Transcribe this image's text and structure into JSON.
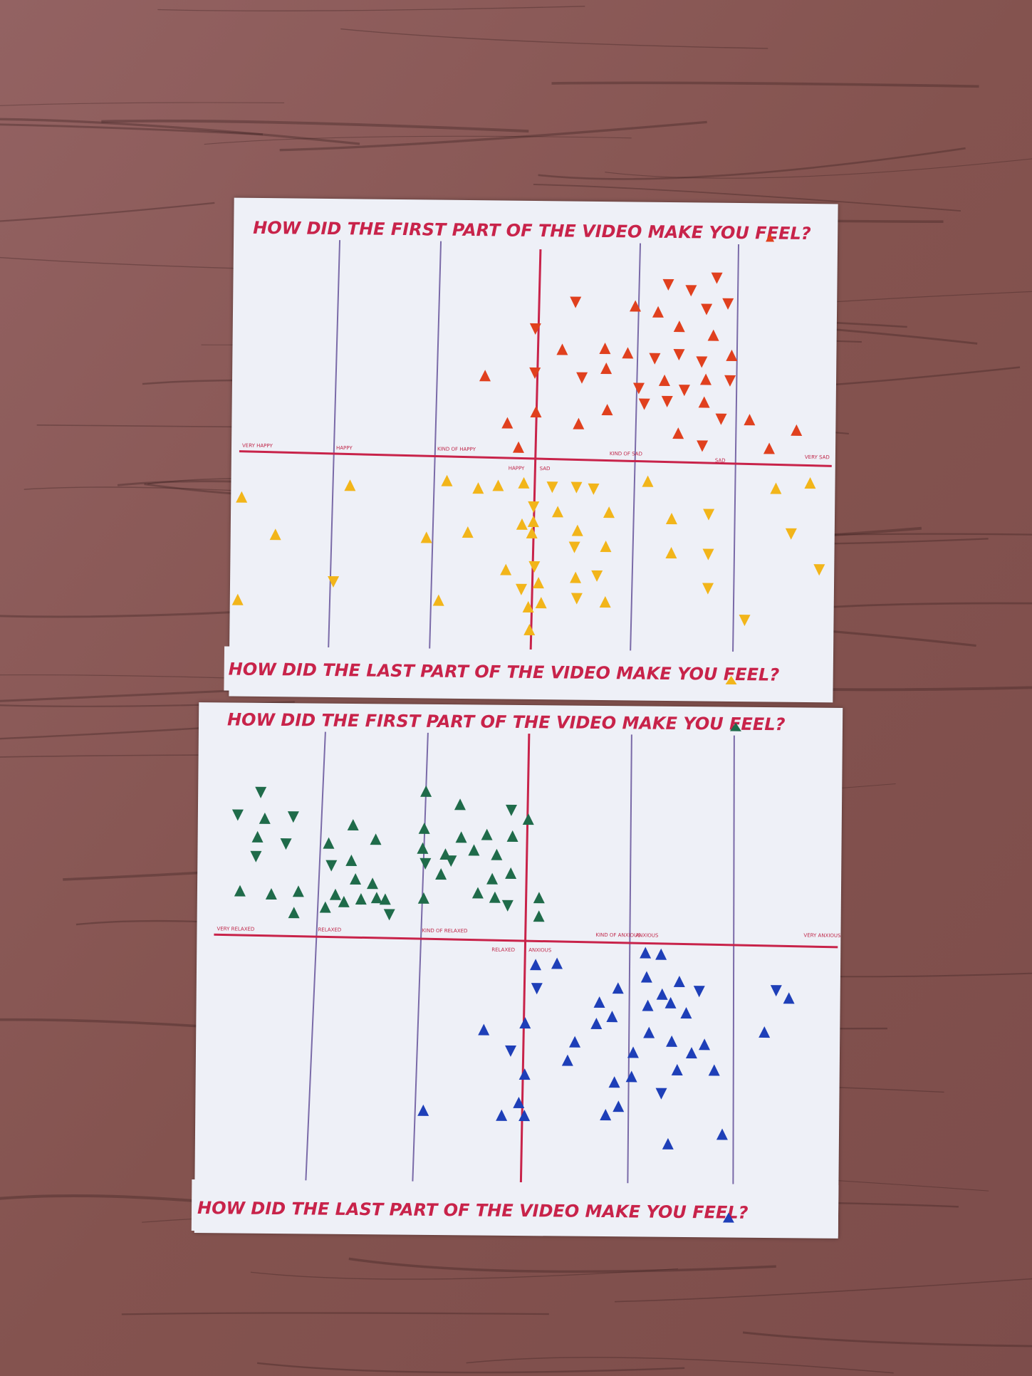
{
  "scene": {
    "background": "wooden table surface",
    "colors": {
      "wood": "#8a5a5a",
      "paper": "#eef0f7",
      "ink_red": "#c8234a",
      "ink_grid": "#7a6aa8"
    }
  },
  "poster_top": {
    "question_first": "HOW DID THE FIRST PART OF THE VIDEO MAKE YOU FEEL?",
    "question_last": "HOW DID THE LAST PART OF THE VIDEO MAKE YOU FEEL?",
    "scale_labels": [
      "VERY HAPPY",
      "HAPPY",
      "KIND OF HAPPY",
      "KIND OF SAD",
      "SAD",
      "VERY SAD"
    ],
    "center_labels": {
      "left": "HAPPY",
      "right": "SAD"
    },
    "sticker_first_color": "#e0401e",
    "sticker_last_color": "#f2b51a"
  },
  "poster_bottom": {
    "question_first": "HOW DID THE FIRST PART OF THE VIDEO MAKE YOU FEEL?",
    "question_last": "HOW DID THE LAST PART OF THE VIDEO MAKE YOU FEEL?",
    "scale_labels": [
      "VERY RELAXED",
      "RELAXED",
      "KIND OF RELAXED",
      "KIND OF ANXIOUS",
      "ANXIOUS",
      "VERY ANXIOUS"
    ],
    "center_labels": {
      "left": "RELAXED",
      "right": "ANXIOUS"
    },
    "sticker_first_color": "#1f6b4a",
    "sticker_last_color": "#1e3fb8"
  }
}
